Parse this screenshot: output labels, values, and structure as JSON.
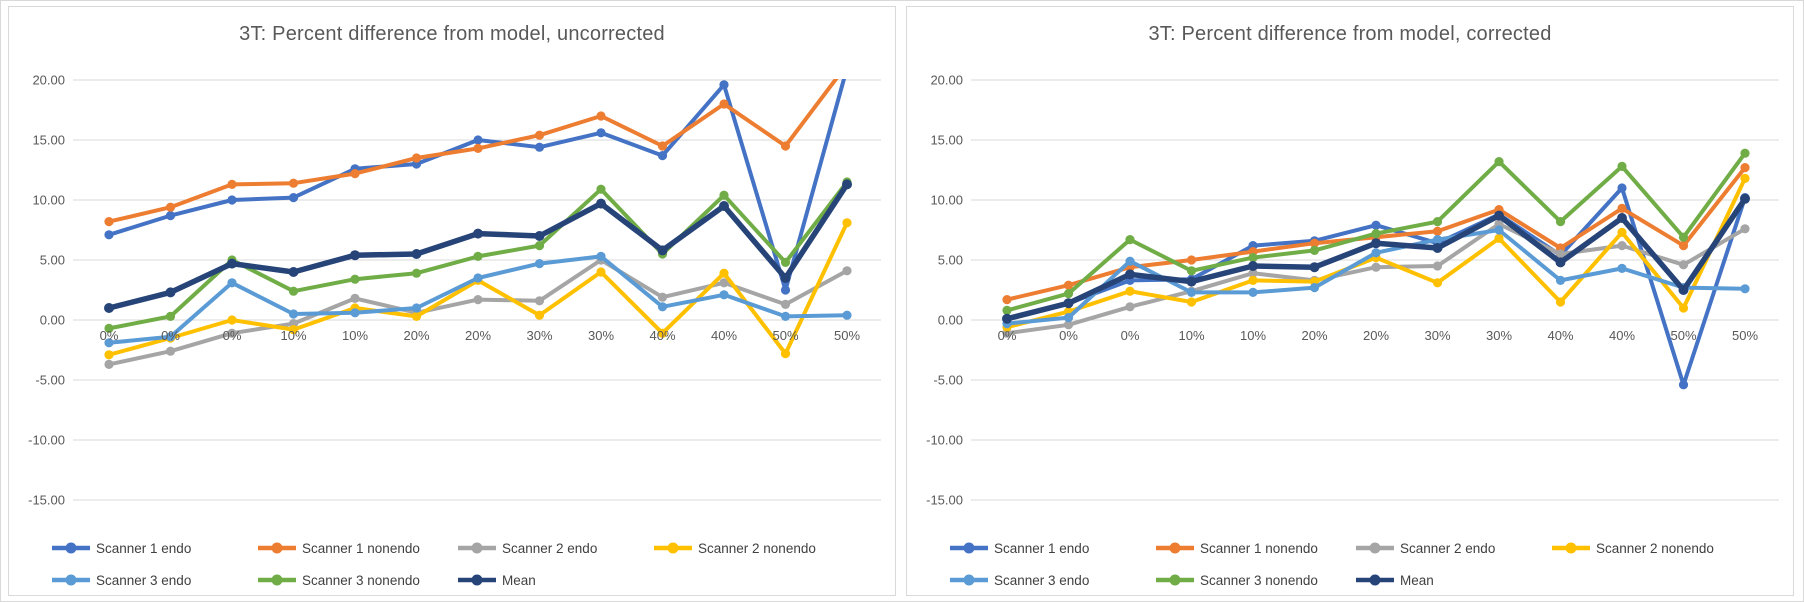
{
  "colors": {
    "card_border": "#d9d9d9",
    "gridline": "#d9d9d9",
    "title_text": "#595959",
    "axis_text": "#595959",
    "legend_text": "#404040",
    "background": "#ffffff"
  },
  "axis": {
    "y_tick_labels": [
      "20.00",
      "15.00",
      "10.00",
      "5.00",
      "0.00",
      "-5.00",
      "-10.00",
      "-15.00"
    ],
    "y_tick_values": [
      20,
      15,
      10,
      5,
      0,
      -5,
      -10,
      -15
    ]
  },
  "chart_data": [
    {
      "id": "uncorrected",
      "type": "line",
      "title": "3T: Percent difference from model, uncorrected",
      "xlabel": "",
      "ylabel": "",
      "ylim": [
        -15,
        20
      ],
      "grid": true,
      "legend_position": "bottom",
      "categories": [
        "0%",
        "0%",
        "0%",
        "10%",
        "10%",
        "20%",
        "20%",
        "30%",
        "30%",
        "40%",
        "40%",
        "50%",
        "50%"
      ],
      "series": [
        {
          "name": "Scanner 1 endo",
          "color": "#4472C4",
          "values": [
            7.1,
            8.7,
            10.0,
            10.2,
            12.6,
            13.0,
            15.0,
            14.4,
            15.6,
            13.7,
            19.6,
            2.5,
            21.0
          ]
        },
        {
          "name": "Scanner 1 nonendo",
          "color": "#ED7D31",
          "values": [
            8.2,
            9.4,
            11.3,
            11.4,
            12.2,
            13.5,
            14.3,
            15.4,
            17.0,
            14.5,
            18.0,
            14.5,
            21.3
          ]
        },
        {
          "name": "Scanner 2 endo",
          "color": "#A5A5A5",
          "values": [
            -3.7,
            -2.6,
            -1.1,
            -0.3,
            1.8,
            0.6,
            1.7,
            1.6,
            5.0,
            1.9,
            3.1,
            1.3,
            4.1
          ]
        },
        {
          "name": "Scanner 2 nonendo",
          "color": "#FFC000",
          "values": [
            -2.9,
            -1.5,
            0.0,
            -0.8,
            1.0,
            0.3,
            3.3,
            0.4,
            4.0,
            -1.1,
            3.9,
            -2.8,
            8.1
          ]
        },
        {
          "name": "Scanner 3 endo",
          "color": "#5B9BD5",
          "values": [
            -1.9,
            -1.4,
            3.1,
            0.5,
            0.6,
            1.0,
            3.5,
            4.7,
            5.3,
            1.1,
            2.1,
            0.3,
            0.4
          ]
        },
        {
          "name": "Scanner 3 nonendo",
          "color": "#70AD47",
          "values": [
            -0.7,
            0.3,
            5.0,
            2.4,
            3.4,
            3.9,
            5.3,
            6.2,
            10.9,
            5.5,
            10.4,
            4.8,
            11.5
          ]
        },
        {
          "name": "Mean",
          "color": "#264478",
          "values": [
            1.0,
            2.3,
            4.7,
            4.0,
            5.4,
            5.5,
            7.2,
            7.0,
            9.7,
            5.8,
            9.5,
            3.5,
            11.3
          ]
        }
      ]
    },
    {
      "id": "corrected",
      "type": "line",
      "title": "3T: Percent difference from model, corrected",
      "xlabel": "",
      "ylabel": "",
      "ylim": [
        -15,
        20
      ],
      "grid": true,
      "legend_position": "bottom",
      "categories": [
        "0%",
        "0%",
        "0%",
        "10%",
        "10%",
        "20%",
        "20%",
        "30%",
        "30%",
        "40%",
        "40%",
        "50%",
        "50%"
      ],
      "series": [
        {
          "name": "Scanner 1 endo",
          "color": "#4472C4",
          "values": [
            0.1,
            1.4,
            3.3,
            3.4,
            6.2,
            6.6,
            7.9,
            6.4,
            8.8,
            5.4,
            11.0,
            -5.4,
            10.2
          ]
        },
        {
          "name": "Scanner 1 nonendo",
          "color": "#ED7D31",
          "values": [
            1.7,
            2.9,
            4.4,
            5.0,
            5.7,
            6.4,
            6.9,
            7.4,
            9.2,
            6.0,
            9.3,
            6.2,
            12.7
          ]
        },
        {
          "name": "Scanner 2 endo",
          "color": "#A5A5A5",
          "values": [
            -1.1,
            -0.4,
            1.1,
            2.4,
            3.9,
            3.3,
            4.4,
            4.5,
            8.0,
            5.5,
            6.2,
            4.6,
            7.6
          ]
        },
        {
          "name": "Scanner 2 nonendo",
          "color": "#FFC000",
          "values": [
            -0.6,
            0.7,
            2.4,
            1.5,
            3.3,
            3.2,
            5.2,
            3.1,
            6.8,
            1.5,
            7.3,
            1.0,
            11.8
          ]
        },
        {
          "name": "Scanner 3 endo",
          "color": "#5B9BD5",
          "values": [
            -0.3,
            0.2,
            4.9,
            2.3,
            2.3,
            2.7,
            5.6,
            6.7,
            7.5,
            3.3,
            4.3,
            2.7,
            2.6
          ]
        },
        {
          "name": "Scanner 3 nonendo",
          "color": "#70AD47",
          "values": [
            0.8,
            2.2,
            6.7,
            4.1,
            5.2,
            5.8,
            7.2,
            8.2,
            13.2,
            8.2,
            12.8,
            6.9,
            13.9
          ]
        },
        {
          "name": "Mean",
          "color": "#264478",
          "values": [
            0.1,
            1.4,
            3.8,
            3.2,
            4.5,
            4.4,
            6.4,
            6.0,
            8.7,
            4.8,
            8.5,
            2.5,
            10.1
          ]
        }
      ]
    }
  ]
}
